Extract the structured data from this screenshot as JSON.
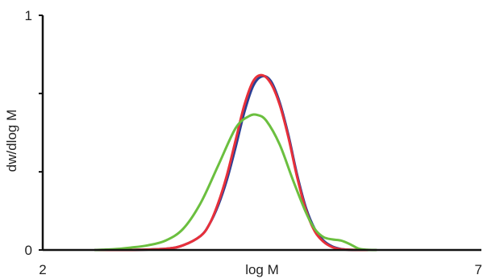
{
  "chart_data": {
    "type": "line",
    "title": "",
    "xlabel": "log M",
    "ylabel": "dw/dlog M",
    "xlim": [
      2,
      7
    ],
    "ylim": [
      0,
      1
    ],
    "x_ticks": [
      2,
      7
    ],
    "x_tick_labels": [
      "2",
      "7"
    ],
    "y_ticks": [
      0,
      1
    ],
    "y_tick_labels": [
      "0",
      "1"
    ],
    "y_minor_ticks": [
      0.333,
      0.667
    ],
    "grid": false,
    "legend": "none",
    "series": [
      {
        "color": "#2b3f94",
        "x": [
          2.6,
          3.0,
          3.4,
          3.6,
          3.8,
          3.9,
          4.0,
          4.1,
          4.2,
          4.3,
          4.4,
          4.5,
          4.6,
          4.7,
          4.8,
          4.9,
          5.0,
          5.1,
          5.2,
          5.3,
          5.4,
          5.5,
          5.6,
          5.7
        ],
        "y": [
          0.0,
          0.0,
          0.005,
          0.02,
          0.06,
          0.11,
          0.19,
          0.3,
          0.44,
          0.59,
          0.7,
          0.74,
          0.72,
          0.63,
          0.49,
          0.32,
          0.18,
          0.09,
          0.04,
          0.015,
          0.004,
          0.001,
          0.0,
          0.0
        ]
      },
      {
        "color": "#e8303a",
        "x": [
          2.6,
          3.0,
          3.4,
          3.6,
          3.8,
          3.9,
          4.0,
          4.1,
          4.2,
          4.3,
          4.4,
          4.5,
          4.6,
          4.7,
          4.8,
          4.9,
          5.0,
          5.1,
          5.2,
          5.3,
          5.4,
          5.5,
          5.6,
          5.7
        ],
        "y": [
          0.0,
          0.0,
          0.005,
          0.02,
          0.06,
          0.11,
          0.2,
          0.32,
          0.47,
          0.62,
          0.72,
          0.745,
          0.71,
          0.62,
          0.48,
          0.31,
          0.17,
          0.08,
          0.035,
          0.012,
          0.003,
          0.001,
          0.0,
          0.0
        ]
      },
      {
        "color": "#6bbf3f",
        "x": [
          2.6,
          2.8,
          3.0,
          3.2,
          3.4,
          3.6,
          3.8,
          4.0,
          4.2,
          4.35,
          4.45,
          4.55,
          4.7,
          4.85,
          5.0,
          5.1,
          5.2,
          5.3,
          5.4,
          5.5,
          5.6,
          5.7,
          5.8
        ],
        "y": [
          0.0,
          0.003,
          0.01,
          0.02,
          0.04,
          0.09,
          0.2,
          0.36,
          0.52,
          0.57,
          0.575,
          0.55,
          0.45,
          0.3,
          0.16,
          0.09,
          0.055,
          0.045,
          0.04,
          0.025,
          0.006,
          0.001,
          0.0
        ]
      }
    ]
  }
}
